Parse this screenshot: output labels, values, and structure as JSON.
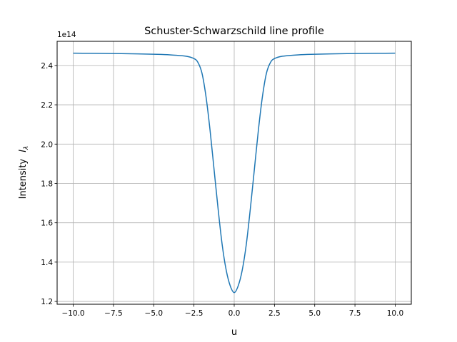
{
  "chart_data": {
    "type": "line",
    "title": "Schuster-Schwarzschild line profile",
    "xlabel": "u",
    "ylabel_text": "Intensity",
    "ylabel_symbol": "I",
    "ylabel_subscript": "λ",
    "offset_label": "1e14",
    "xlim": [
      -11.0,
      11.0
    ],
    "ylim": [
      118580000000000.0,
      252270000000000.0
    ],
    "xticks": [
      -10.0,
      -7.5,
      -5.0,
      -2.5,
      0.0,
      2.5,
      5.0,
      7.5,
      10.0
    ],
    "xtick_labels": [
      "−10.0",
      "−7.5",
      "−5.0",
      "−2.5",
      "0.0",
      "2.5",
      "5.0",
      "7.5",
      "10.0"
    ],
    "yticks": [
      120000000000000.0,
      140000000000000.0,
      160000000000000.0,
      180000000000000.0,
      200000000000000.0,
      220000000000000.0,
      240000000000000.0
    ],
    "ytick_labels": [
      "1.2",
      "1.4",
      "1.6",
      "1.8",
      "2.0",
      "2.2",
      "2.4"
    ],
    "grid": true,
    "line_color": "#1f77b4",
    "series": [
      {
        "x": [
          -10,
          -9,
          -8,
          -7,
          -6,
          -5,
          -4,
          -3,
          -2.5,
          -2.25,
          -2,
          -1.75,
          -1.5,
          -1.25,
          -1,
          -0.75,
          -0.5,
          -0.25,
          0,
          0.25,
          0.5,
          0.75,
          1,
          1.25,
          1.5,
          1.75,
          2,
          2.25,
          2.5,
          3,
          4,
          5,
          6,
          7,
          8,
          9,
          10
        ],
        "y": [
          246250000000000.0,
          246200000000000.0,
          246100000000000.0,
          246000000000000.0,
          245900000000000.0,
          245700000000000.0,
          245400000000000.0,
          244700000000000.0,
          243500000000000.0,
          241500000000000.0,
          236000000000000.0,
          224000000000000.0,
          207000000000000.0,
          187000000000000.0,
          167000000000000.0,
          149000000000000.0,
          136000000000000.0,
          128000000000000.0,
          124500000000000.0,
          128000000000000.0,
          136000000000000.0,
          149000000000000.0,
          167000000000000.0,
          187000000000000.0,
          207000000000000.0,
          224000000000000.0,
          236000000000000.0,
          241500000000000.0,
          243500000000000.0,
          244700000000000.0,
          245400000000000.0,
          245700000000000.0,
          245900000000000.0,
          246000000000000.0,
          246100000000000.0,
          246200000000000.0,
          246250000000000.0
        ]
      }
    ]
  }
}
